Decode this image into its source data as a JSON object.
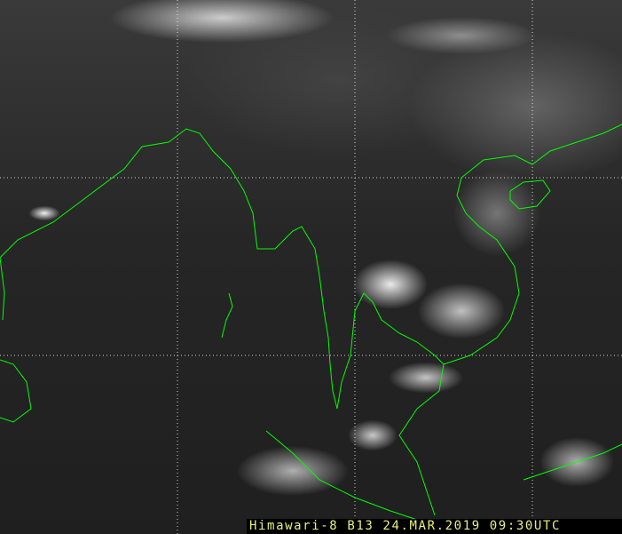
{
  "caption": "Himawari-8 B13 24.MAR.2019 09:30UTC",
  "colors": {
    "coastline": "#00ff00",
    "grid": "#ffffff",
    "caption_text": "#e8f07a"
  }
}
